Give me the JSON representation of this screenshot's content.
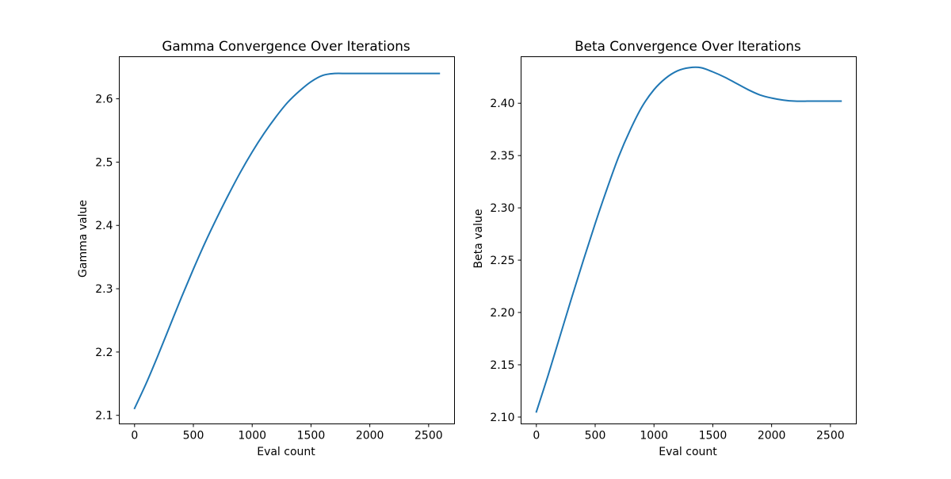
{
  "chart_data": [
    {
      "type": "line",
      "title": "Gamma Convergence Over Iterations",
      "xlabel": "Eval count",
      "ylabel": "Gamma value",
      "xlim": [
        -130,
        2720
      ],
      "ylim": [
        2.0865,
        2.6665
      ],
      "xticks": [
        0,
        500,
        1000,
        1500,
        2000,
        2500
      ],
      "xtick_labels": [
        "0",
        "500",
        "1000",
        "1500",
        "2000",
        "2500"
      ],
      "yticks": [
        2.1,
        2.2,
        2.3,
        2.4,
        2.5,
        2.6
      ],
      "ytick_labels": [
        "2.1",
        "2.2",
        "2.3",
        "2.4",
        "2.5",
        "2.6"
      ],
      "grid": false,
      "line_color": "#1f77b4",
      "series": [
        {
          "x": [
            0,
            100,
            200,
            300,
            400,
            500,
            600,
            700,
            800,
            900,
            1000,
            1100,
            1200,
            1300,
            1400,
            1500,
            1600,
            1700,
            1800,
            1900,
            2000,
            2100,
            2200,
            2300,
            2400,
            2500,
            2590
          ],
          "y": [
            2.111,
            2.151,
            2.195,
            2.241,
            2.287,
            2.331,
            2.373,
            2.412,
            2.449,
            2.484,
            2.516,
            2.545,
            2.571,
            2.594,
            2.612,
            2.627,
            2.637,
            2.64,
            2.64,
            2.64,
            2.64,
            2.64,
            2.64,
            2.64,
            2.64,
            2.64,
            2.64
          ]
        }
      ]
    },
    {
      "type": "line",
      "title": "Beta Convergence Over Iterations",
      "xlabel": "Eval count",
      "ylabel": "Beta value",
      "xlim": [
        -130,
        2720
      ],
      "ylim": [
        2.0935,
        2.4445
      ],
      "xticks": [
        0,
        500,
        1000,
        1500,
        2000,
        2500
      ],
      "xtick_labels": [
        "0",
        "500",
        "1000",
        "1500",
        "2000",
        "2500"
      ],
      "yticks": [
        2.1,
        2.15,
        2.2,
        2.25,
        2.3,
        2.35,
        2.4
      ],
      "ytick_labels": [
        "2.10",
        "2.15",
        "2.20",
        "2.25",
        "2.30",
        "2.35",
        "2.40"
      ],
      "grid": false,
      "line_color": "#1f77b4",
      "series": [
        {
          "x": [
            0,
            100,
            200,
            300,
            400,
            500,
            600,
            700,
            800,
            900,
            1000,
            1100,
            1200,
            1300,
            1400,
            1500,
            1600,
            1700,
            1800,
            1900,
            2000,
            2100,
            2200,
            2300,
            2400,
            2500,
            2590
          ],
          "y": [
            2.105,
            2.14,
            2.177,
            2.214,
            2.25,
            2.285,
            2.318,
            2.349,
            2.375,
            2.397,
            2.413,
            2.424,
            2.431,
            2.434,
            2.434,
            2.43,
            2.425,
            2.419,
            2.413,
            2.408,
            2.405,
            2.403,
            2.402,
            2.402,
            2.402,
            2.402,
            2.402
          ]
        }
      ]
    }
  ]
}
